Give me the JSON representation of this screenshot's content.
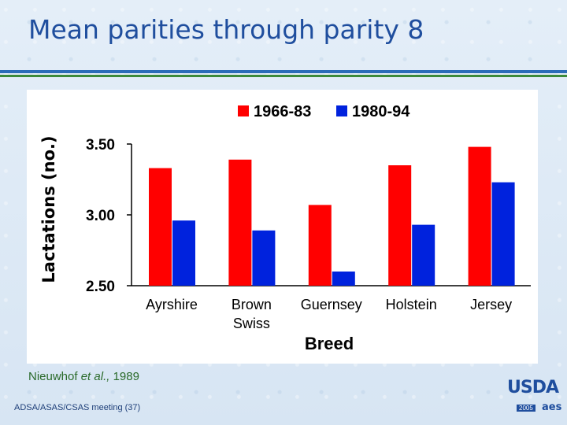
{
  "slide": {
    "title": "Mean parities through parity 8",
    "citation_author": "Nieuwhof",
    "citation_etal": "et al.,",
    "citation_year": "1989",
    "footer": "ADSA/ASAS/CSAS meeting (37)",
    "logo_text": "USDA",
    "logo_year": "2005",
    "logo_mark": "aes"
  },
  "colors": {
    "series1": "#ff0000",
    "series2": "#0022dd",
    "title": "#1f4e9e",
    "citation": "#2a6a2a"
  },
  "chart_data": {
    "type": "bar",
    "title": "",
    "xlabel": "Breed",
    "ylabel": "Lactations (no.)",
    "ylim": [
      2.5,
      3.5
    ],
    "yticks": [
      "2.50",
      "3.00",
      "3.50"
    ],
    "ytick_values": [
      2.5,
      3.0,
      3.5
    ],
    "categories": [
      "Ayrshire",
      "Brown Swiss",
      "Guernsey",
      "Holstein",
      "Jersey"
    ],
    "category_lines": [
      [
        "Ayrshire"
      ],
      [
        "Brown",
        "Swiss"
      ],
      [
        "Guernsey"
      ],
      [
        "Holstein"
      ],
      [
        "Jersey"
      ]
    ],
    "series": [
      {
        "name": "1966-83",
        "values": [
          3.33,
          3.39,
          3.07,
          3.35,
          3.48
        ]
      },
      {
        "name": "1980-94",
        "values": [
          2.96,
          2.89,
          2.6,
          2.93,
          3.23
        ]
      }
    ],
    "grid": false,
    "legend": "top"
  }
}
